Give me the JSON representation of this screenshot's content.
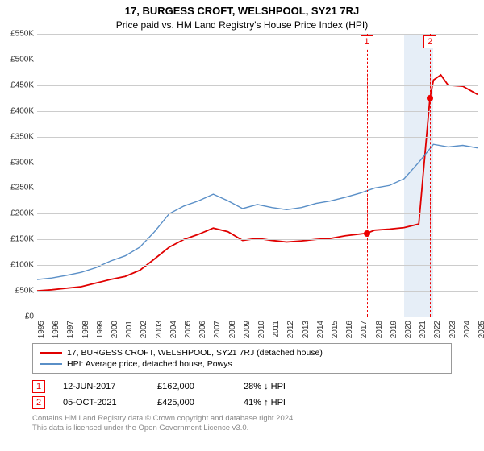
{
  "title": "17, BURGESS CROFT, WELSHPOOL, SY21 7RJ",
  "subtitle": "Price paid vs. HM Land Registry's House Price Index (HPI)",
  "chart": {
    "type": "line",
    "y": {
      "min": 0,
      "max": 550000,
      "step": 50000,
      "prefix": "£",
      "suffix_k": true
    },
    "x": {
      "years": [
        1995,
        1996,
        1997,
        1998,
        1999,
        2000,
        2001,
        2002,
        2003,
        2004,
        2005,
        2006,
        2007,
        2008,
        2009,
        2010,
        2011,
        2012,
        2013,
        2014,
        2015,
        2016,
        2017,
        2018,
        2019,
        2020,
        2021,
        2022,
        2023,
        2024,
        2025
      ]
    },
    "background_color": "#ffffff",
    "grid_color": "#cccccc",
    "series": [
      {
        "name": "17, BURGESS CROFT, WELSHPOOL, SY21 7RJ (detached house)",
        "color": "#e00000",
        "width": 1.8,
        "pts": [
          [
            1995,
            50
          ],
          [
            1996,
            52
          ],
          [
            1997,
            55
          ],
          [
            1998,
            58
          ],
          [
            1999,
            65
          ],
          [
            2000,
            72
          ],
          [
            2001,
            78
          ],
          [
            2002,
            90
          ],
          [
            2003,
            112
          ],
          [
            2004,
            135
          ],
          [
            2005,
            150
          ],
          [
            2006,
            160
          ],
          [
            2007,
            172
          ],
          [
            2008,
            165
          ],
          [
            2009,
            148
          ],
          [
            2010,
            152
          ],
          [
            2011,
            148
          ],
          [
            2012,
            145
          ],
          [
            2013,
            147
          ],
          [
            2014,
            150
          ],
          [
            2015,
            152
          ],
          [
            2016,
            157
          ],
          [
            2017.45,
            162
          ],
          [
            2017.46,
            162
          ],
          [
            2018,
            168
          ],
          [
            2019,
            170
          ],
          [
            2020,
            173
          ],
          [
            2021,
            180
          ],
          [
            2021.76,
            425
          ],
          [
            2022,
            460
          ],
          [
            2022.5,
            470
          ],
          [
            2023,
            450
          ],
          [
            2024,
            448
          ],
          [
            2025,
            432
          ]
        ]
      },
      {
        "name": "HPI: Average price, detached house, Powys",
        "color": "#5a8fc7",
        "width": 1.4,
        "pts": [
          [
            1995,
            72
          ],
          [
            1996,
            75
          ],
          [
            1997,
            80
          ],
          [
            1998,
            86
          ],
          [
            1999,
            95
          ],
          [
            2000,
            108
          ],
          [
            2001,
            118
          ],
          [
            2002,
            135
          ],
          [
            2003,
            165
          ],
          [
            2004,
            200
          ],
          [
            2005,
            215
          ],
          [
            2006,
            225
          ],
          [
            2007,
            238
          ],
          [
            2008,
            225
          ],
          [
            2009,
            210
          ],
          [
            2010,
            218
          ],
          [
            2011,
            212
          ],
          [
            2012,
            208
          ],
          [
            2013,
            212
          ],
          [
            2014,
            220
          ],
          [
            2015,
            225
          ],
          [
            2016,
            232
          ],
          [
            2017,
            240
          ],
          [
            2018,
            250
          ],
          [
            2019,
            255
          ],
          [
            2020,
            268
          ],
          [
            2021,
            300
          ],
          [
            2022,
            335
          ],
          [
            2023,
            330
          ],
          [
            2024,
            333
          ],
          [
            2025,
            328
          ]
        ]
      }
    ],
    "shade": {
      "from": 2020,
      "to": 2022,
      "color": "#e6eef7"
    },
    "markers": [
      {
        "id": "1",
        "year": 2017.45,
        "value": 162
      },
      {
        "id": "2",
        "year": 2021.76,
        "value": 425
      }
    ]
  },
  "sales": [
    {
      "id": "1",
      "date": "12-JUN-2017",
      "price": "£162,000",
      "diff": "28% ↓ HPI"
    },
    {
      "id": "2",
      "date": "05-OCT-2021",
      "price": "£425,000",
      "diff": "41% ↑ HPI"
    }
  ],
  "footer": {
    "l1": "Contains HM Land Registry data © Crown copyright and database right 2024.",
    "l2": "This data is licensed under the Open Government Licence v3.0."
  }
}
